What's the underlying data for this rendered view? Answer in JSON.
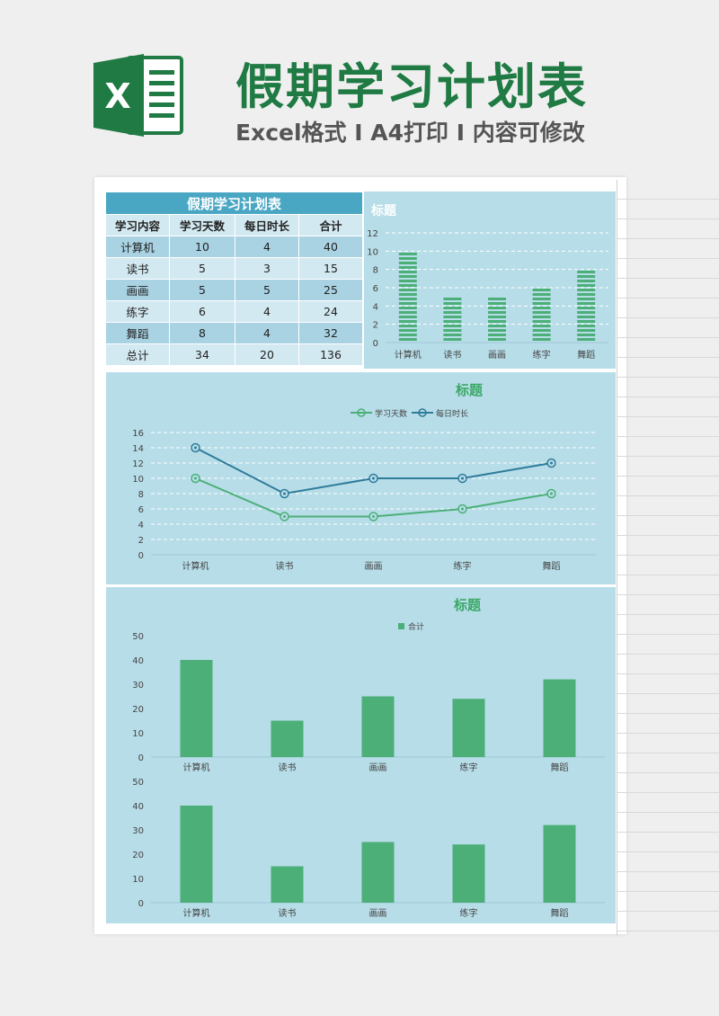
{
  "header": {
    "logo_letter": "X",
    "title": "假期学习计划表",
    "subtitle": "Excel格式 I A4打印 I 内容可修改"
  },
  "table": {
    "title": "假期学习计划表",
    "columns": [
      "学习内容",
      "学习天数",
      "每日时长",
      "合计"
    ],
    "rows": [
      [
        "计算机",
        "10",
        "4",
        "40"
      ],
      [
        "读书",
        "5",
        "3",
        "15"
      ],
      [
        "画画",
        "5",
        "5",
        "25"
      ],
      [
        "练字",
        "6",
        "4",
        "24"
      ],
      [
        "舞蹈",
        "8",
        "4",
        "32"
      ],
      [
        "总计",
        "34",
        "20",
        "136"
      ]
    ]
  },
  "colors": {
    "panel": "#b7dde8",
    "green": "#4caf78",
    "blue": "#2f7c9b",
    "title_green": "#3aa866"
  },
  "chart_data": [
    {
      "type": "bar",
      "title": "标题",
      "categories": [
        "计算机",
        "读书",
        "画画",
        "练字",
        "舞蹈"
      ],
      "values": [
        10,
        5,
        5,
        6,
        8
      ],
      "ylim": [
        0,
        12
      ],
      "yticks": [
        0,
        2,
        4,
        6,
        8,
        10,
        12
      ],
      "grid": true,
      "legend": "none"
    },
    {
      "type": "line",
      "title": "标题",
      "categories": [
        "计算机",
        "读书",
        "画画",
        "练字",
        "舞蹈"
      ],
      "series": [
        {
          "name": "学习天数",
          "values": [
            10,
            5,
            5,
            6,
            8
          ]
        },
        {
          "name": "每日时长",
          "values": [
            14,
            8,
            10,
            10,
            12
          ]
        }
      ],
      "ylim": [
        0,
        16
      ],
      "yticks": [
        0,
        2,
        4,
        6,
        8,
        10,
        12,
        14,
        16
      ],
      "grid": true,
      "legend": "top"
    },
    {
      "type": "bar",
      "title": "标题",
      "categories": [
        "计算机",
        "读书",
        "画画",
        "练字",
        "舞蹈"
      ],
      "series": [
        {
          "name": "合计",
          "values": [
            40,
            15,
            25,
            24,
            32
          ]
        }
      ],
      "ylim": [
        0,
        50
      ],
      "yticks": [
        0,
        10,
        20,
        30,
        40,
        50
      ],
      "grid": false,
      "legend": "top"
    },
    {
      "type": "bar",
      "categories": [
        "计算机",
        "读书",
        "画画",
        "练字",
        "舞蹈"
      ],
      "values": [
        40,
        15,
        25,
        24,
        32
      ],
      "ylim": [
        0,
        50
      ],
      "yticks": [
        0,
        10,
        20,
        30,
        40,
        50
      ],
      "grid": false,
      "legend": "none"
    }
  ]
}
